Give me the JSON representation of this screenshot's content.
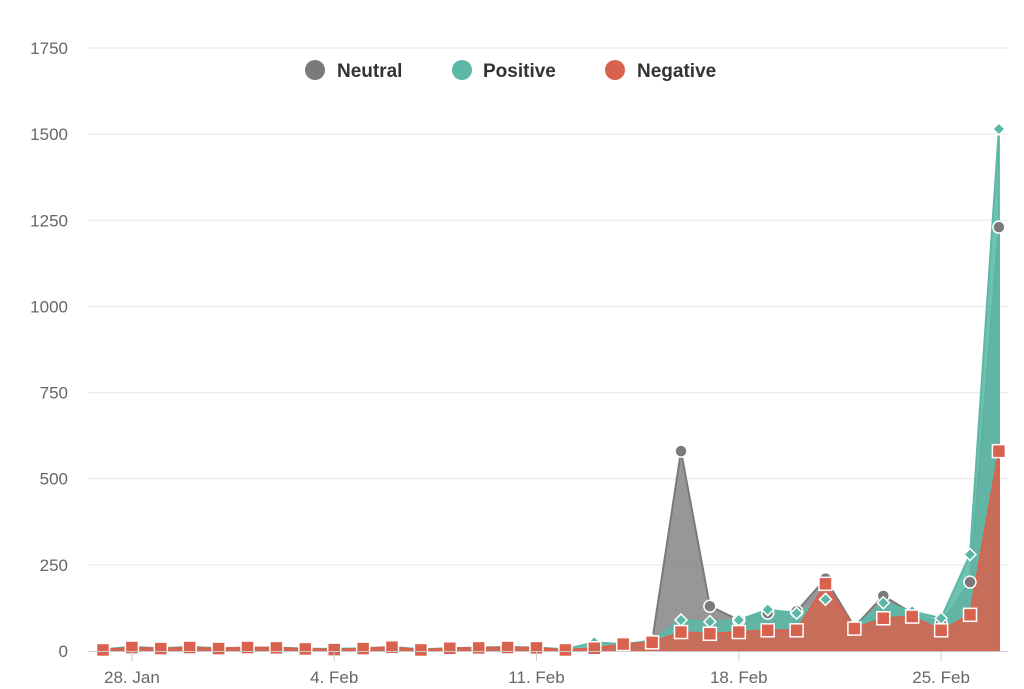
{
  "chart_data": {
    "type": "area",
    "title": "",
    "xlabel": "",
    "ylabel": "",
    "ylim": [
      0,
      1750
    ],
    "y_ticks": [
      0,
      250,
      500,
      750,
      1000,
      1250,
      1500,
      1750
    ],
    "x_tick_labels": [
      "28. Jan",
      "4. Feb",
      "11. Feb",
      "18. Feb",
      "25. Feb"
    ],
    "grid": true,
    "legend_position": "top-center",
    "x": [
      "27 Jan",
      "28 Jan",
      "29 Jan",
      "30 Jan",
      "31 Jan",
      "1 Feb",
      "2 Feb",
      "3 Feb",
      "4 Feb",
      "5 Feb",
      "6 Feb",
      "7 Feb",
      "8 Feb",
      "9 Feb",
      "10 Feb",
      "11 Feb",
      "12 Feb",
      "13 Feb",
      "14 Feb",
      "15 Feb",
      "16 Feb",
      "17 Feb",
      "18 Feb",
      "19 Feb",
      "20 Feb",
      "21 Feb",
      "22 Feb",
      "23 Feb",
      "24 Feb",
      "25 Feb",
      "26 Feb",
      "27 Feb"
    ],
    "series": [
      {
        "name": "Neutral",
        "color": "#7a7a7a",
        "marker": "circle",
        "values": [
          3,
          8,
          6,
          10,
          6,
          8,
          8,
          5,
          4,
          6,
          10,
          3,
          6,
          8,
          10,
          8,
          3,
          8,
          18,
          28,
          580,
          130,
          90,
          110,
          115,
          210,
          70,
          160,
          110,
          80,
          200,
          1230
        ]
      },
      {
        "name": "Positive",
        "color": "#5bb8a6",
        "marker": "diamond",
        "values": [
          5,
          12,
          8,
          12,
          8,
          10,
          10,
          7,
          6,
          8,
          12,
          5,
          8,
          10,
          12,
          10,
          5,
          25,
          20,
          30,
          90,
          85,
          90,
          120,
          110,
          150,
          70,
          140,
          115,
          95,
          280,
          1515
        ]
      },
      {
        "name": "Negative",
        "color": "#d9624f",
        "marker": "square",
        "values": [
          3,
          10,
          7,
          10,
          7,
          10,
          9,
          6,
          4,
          7,
          11,
          3,
          8,
          9,
          10,
          9,
          3,
          8,
          20,
          25,
          55,
          50,
          55,
          60,
          60,
          195,
          65,
          95,
          100,
          60,
          105,
          580
        ]
      }
    ]
  }
}
